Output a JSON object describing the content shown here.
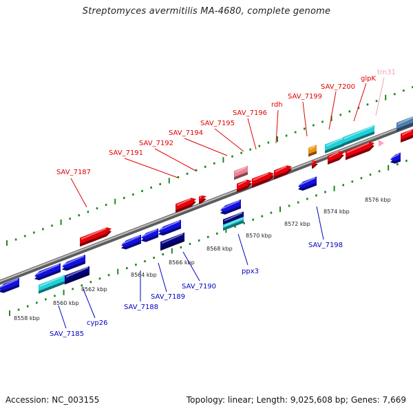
{
  "title": "Streptomyces avermitilis MA-4680, complete genome",
  "footer": {
    "accession": "Accession: NC_003155",
    "summary": "Topology: linear; Length: 9,025,608 bp; Genes: 7,669"
  },
  "colors": {
    "forward_gene": "#e8000a",
    "reverse_gene": "#1010e0",
    "dark_gene": "#000080",
    "cyan_gene": "#20d0d8",
    "pink_gene": "#f08090",
    "orange_gene": "#f09010",
    "steel_gene": "#4a7fb0",
    "trna": "#ffa0c0",
    "forward_label": "#e00000",
    "reverse_label": "#0000c0",
    "trna_label": "#f0a0b0",
    "backbone": "#909090",
    "ticks": "#1a8a1a"
  },
  "kbp_labels": [
    "8558 kbp",
    "8560 kbp",
    "8562 kbp",
    "8564 kbp",
    "8566 kbp",
    "8568 kbp",
    "8570 kbp",
    "8572 kbp",
    "8574 kbp",
    "8576 kbp"
  ],
  "forward_labels": [
    "SAV_7187",
    "SAV_7191",
    "SAV_7192",
    "SAV_7194",
    "SAV_7195",
    "SAV_7196",
    "rdh",
    "SAV_7199",
    "SAV_7200",
    "glpK"
  ],
  "trna_labels": [
    "trn31"
  ],
  "reverse_labels": [
    "SAV_7185",
    "cyp26",
    "SAV_7188",
    "SAV_7189",
    "SAV_7190",
    "ppx3",
    "SAV_7198"
  ]
}
